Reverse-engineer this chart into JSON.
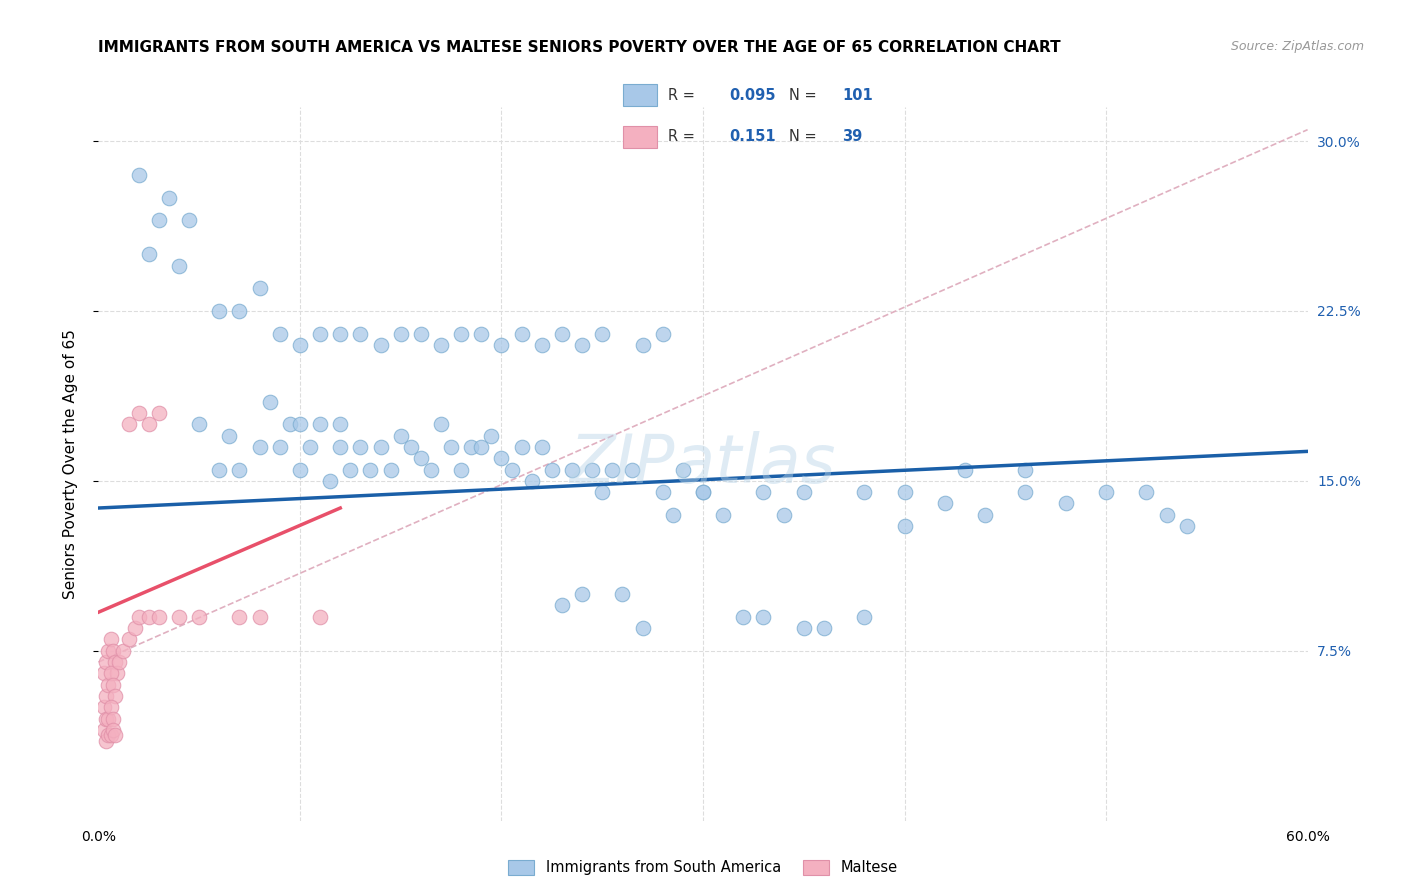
{
  "title": "IMMIGRANTS FROM SOUTH AMERICA VS MALTESE SENIORS POVERTY OVER THE AGE OF 65 CORRELATION CHART",
  "source": "Source: ZipAtlas.com",
  "ylabel": "Seniors Poverty Over the Age of 65",
  "xlim": [
    0.0,
    0.6
  ],
  "ylim": [
    0.0,
    0.315
  ],
  "ytick_labels_right": [
    "30.0%",
    "22.5%",
    "15.0%",
    "7.5%"
  ],
  "ytick_vals_right": [
    0.3,
    0.225,
    0.15,
    0.075
  ],
  "blue_R": "0.095",
  "blue_N": "101",
  "pink_R": "0.151",
  "pink_N": "39",
  "blue_color": "#a8c8e8",
  "pink_color": "#f4b0c0",
  "blue_line_color": "#1a5fa8",
  "pink_line_color": "#e8506a",
  "dashed_line_color": "#e0b0c0",
  "grid_color": "#dddddd",
  "watermark": "ZIPatlas",
  "blue_line_x0": 0.0,
  "blue_line_y0": 0.138,
  "blue_line_x1": 0.6,
  "blue_line_y1": 0.163,
  "pink_line_x0": 0.0,
  "pink_line_y0": 0.092,
  "pink_line_x1": 0.12,
  "pink_line_y1": 0.138,
  "dash_line_x0": 0.0,
  "dash_line_y0": 0.07,
  "dash_line_x1": 0.6,
  "dash_line_y1": 0.305,
  "blue_scatter_x": [
    0.05,
    0.06,
    0.065,
    0.07,
    0.08,
    0.085,
    0.09,
    0.095,
    0.1,
    0.1,
    0.105,
    0.11,
    0.115,
    0.12,
    0.12,
    0.125,
    0.13,
    0.135,
    0.14,
    0.145,
    0.15,
    0.155,
    0.16,
    0.165,
    0.17,
    0.175,
    0.18,
    0.185,
    0.19,
    0.195,
    0.2,
    0.205,
    0.21,
    0.215,
    0.22,
    0.225,
    0.23,
    0.235,
    0.24,
    0.245,
    0.25,
    0.255,
    0.26,
    0.265,
    0.27,
    0.28,
    0.285,
    0.29,
    0.3,
    0.31,
    0.32,
    0.33,
    0.34,
    0.35,
    0.36,
    0.38,
    0.4,
    0.42,
    0.44,
    0.46,
    0.48,
    0.5,
    0.52,
    0.54,
    0.02,
    0.025,
    0.03,
    0.035,
    0.04,
    0.045,
    0.06,
    0.07,
    0.08,
    0.09,
    0.1,
    0.11,
    0.12,
    0.13,
    0.14,
    0.15,
    0.16,
    0.17,
    0.18,
    0.19,
    0.2,
    0.21,
    0.22,
    0.23,
    0.24,
    0.25,
    0.27,
    0.28,
    0.3,
    0.33,
    0.35,
    0.38,
    0.4,
    0.43,
    0.46,
    0.53
  ],
  "blue_scatter_y": [
    0.175,
    0.155,
    0.17,
    0.155,
    0.165,
    0.185,
    0.165,
    0.175,
    0.155,
    0.175,
    0.165,
    0.175,
    0.15,
    0.165,
    0.175,
    0.155,
    0.165,
    0.155,
    0.165,
    0.155,
    0.17,
    0.165,
    0.16,
    0.155,
    0.175,
    0.165,
    0.155,
    0.165,
    0.165,
    0.17,
    0.16,
    0.155,
    0.165,
    0.15,
    0.165,
    0.155,
    0.095,
    0.155,
    0.1,
    0.155,
    0.145,
    0.155,
    0.1,
    0.155,
    0.085,
    0.145,
    0.135,
    0.155,
    0.145,
    0.135,
    0.09,
    0.09,
    0.135,
    0.085,
    0.085,
    0.09,
    0.145,
    0.14,
    0.135,
    0.145,
    0.14,
    0.145,
    0.145,
    0.13,
    0.285,
    0.25,
    0.265,
    0.275,
    0.245,
    0.265,
    0.225,
    0.225,
    0.235,
    0.215,
    0.21,
    0.215,
    0.215,
    0.215,
    0.21,
    0.215,
    0.215,
    0.21,
    0.215,
    0.215,
    0.21,
    0.215,
    0.21,
    0.215,
    0.21,
    0.215,
    0.21,
    0.215,
    0.145,
    0.145,
    0.145,
    0.145,
    0.13,
    0.155,
    0.155,
    0.135
  ],
  "pink_scatter_x": [
    0.003,
    0.004,
    0.005,
    0.006,
    0.007,
    0.008,
    0.009,
    0.003,
    0.004,
    0.005,
    0.006,
    0.007,
    0.008,
    0.003,
    0.004,
    0.005,
    0.006,
    0.007,
    0.004,
    0.005,
    0.006,
    0.007,
    0.008,
    0.01,
    0.012,
    0.015,
    0.018,
    0.02,
    0.025,
    0.03,
    0.04,
    0.05,
    0.07,
    0.08,
    0.11,
    0.015,
    0.02,
    0.025,
    0.03
  ],
  "pink_scatter_y": [
    0.065,
    0.07,
    0.075,
    0.08,
    0.075,
    0.07,
    0.065,
    0.05,
    0.055,
    0.06,
    0.065,
    0.06,
    0.055,
    0.04,
    0.045,
    0.045,
    0.05,
    0.045,
    0.035,
    0.038,
    0.038,
    0.04,
    0.038,
    0.07,
    0.075,
    0.08,
    0.085,
    0.09,
    0.09,
    0.09,
    0.09,
    0.09,
    0.09,
    0.09,
    0.09,
    0.175,
    0.18,
    0.175,
    0.18
  ]
}
